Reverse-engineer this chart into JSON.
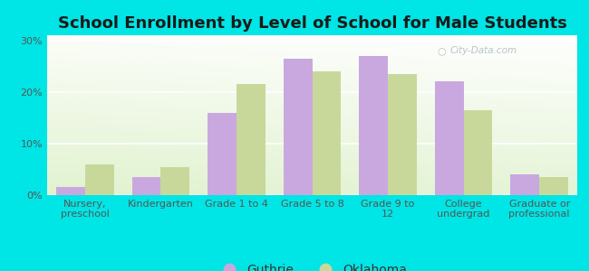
{
  "title": "School Enrollment by Level of School for Male Students",
  "categories": [
    "Nursery,\npreschool",
    "Kindergarten",
    "Grade 1 to 4",
    "Grade 5 to 8",
    "Grade 9 to\n12",
    "College\nundergrad",
    "Graduate or\nprofessional"
  ],
  "guthrie": [
    1.5,
    3.5,
    16.0,
    26.5,
    27.0,
    22.0,
    4.0
  ],
  "oklahoma": [
    6.0,
    5.5,
    21.5,
    24.0,
    23.5,
    16.5,
    3.5
  ],
  "guthrie_color": "#c9a8e0",
  "oklahoma_color": "#c8d89a",
  "background_color": "#00e5e5",
  "title_color": "#1a1a1a",
  "ylabel_ticks": [
    "0%",
    "10%",
    "20%",
    "30%"
  ],
  "ytick_vals": [
    0,
    10,
    20,
    30
  ],
  "ylim": [
    0,
    31
  ],
  "bar_width": 0.38,
  "title_fontsize": 13,
  "tick_fontsize": 8,
  "legend_fontsize": 10,
  "watermark": "City-Data.com",
  "watermark_color": "#b0bec0"
}
